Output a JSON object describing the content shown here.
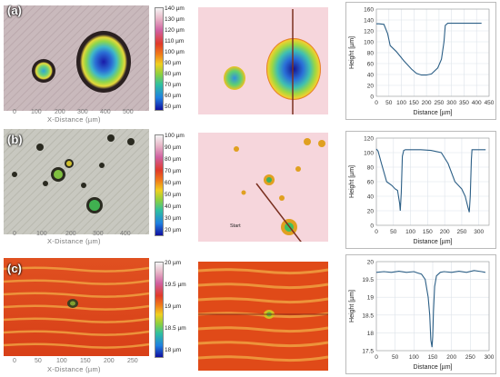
{
  "rows": [
    {
      "label": "(a)",
      "x_ticks": [
        "0",
        "100",
        "200",
        "300",
        "400",
        "500"
      ],
      "x_label": "X-Distance (µm)",
      "colorbar_ticks": [
        "140 µm",
        "130 µm",
        "120 µm",
        "110 µm",
        "100 µm",
        "90 µm",
        "80 µm",
        "70 µm",
        "60 µm",
        "50 µm"
      ]
    },
    {
      "label": "(b)",
      "x_ticks": [
        "0",
        "100",
        "200",
        "300",
        "400"
      ],
      "x_label": "X-Distance (µm)",
      "colorbar_ticks": [
        "100 µm",
        "90 µm",
        "80 µm",
        "70 µm",
        "60 µm",
        "50 µm",
        "40 µm",
        "30 µm",
        "20 µm"
      ],
      "start_label": "Start"
    },
    {
      "label": "(c)",
      "x_ticks": [
        "0",
        "50",
        "100",
        "150",
        "200",
        "250"
      ],
      "x_label": "X-Distance (µm)",
      "colorbar_ticks": [
        "20 µm",
        "19.5 µm",
        "19 µm",
        "18.5 µm",
        "18 µm"
      ]
    }
  ],
  "chart_data": [
    {
      "type": "line",
      "xlabel": "Distance [µm]",
      "ylabel": "Height [µm]",
      "xlim": [
        0,
        450
      ],
      "ylim": [
        0,
        160
      ],
      "xticks": [
        0,
        50,
        100,
        150,
        200,
        250,
        300,
        350,
        400,
        450
      ],
      "yticks": [
        0,
        20,
        40,
        60,
        80,
        100,
        120,
        140,
        160
      ],
      "grid": true,
      "x": [
        0,
        10,
        30,
        45,
        55,
        80,
        110,
        140,
        160,
        180,
        200,
        220,
        245,
        260,
        270,
        275,
        285,
        300,
        350,
        420
      ],
      "y": [
        133,
        133,
        132,
        115,
        93,
        82,
        65,
        50,
        42,
        39,
        39,
        41,
        52,
        68,
        100,
        130,
        134,
        134,
        134,
        134
      ]
    },
    {
      "type": "line",
      "xlabel": "Distance [µm]",
      "ylabel": "Height [µm]",
      "xlim": [
        0,
        330
      ],
      "ylim": [
        0,
        120
      ],
      "xticks": [
        0,
        50,
        100,
        150,
        200,
        250,
        300
      ],
      "yticks": [
        0,
        20,
        40,
        60,
        80,
        100,
        120
      ],
      "grid": true,
      "x": [
        0,
        5,
        15,
        30,
        45,
        55,
        62,
        68,
        70,
        73,
        76,
        80,
        85,
        100,
        130,
        160,
        190,
        210,
        230,
        250,
        260,
        268,
        272,
        275,
        278,
        280,
        290,
        300,
        320
      ],
      "y": [
        105,
        102,
        85,
        60,
        55,
        50,
        48,
        30,
        20,
        45,
        95,
        103,
        104,
        104,
        104,
        103,
        100,
        85,
        60,
        50,
        40,
        25,
        18,
        40,
        90,
        104,
        104,
        104,
        104
      ]
    },
    {
      "type": "line",
      "xlabel": "Distance [µm]",
      "ylabel": "Height [µm]",
      "xlim": [
        0,
        300
      ],
      "ylim": [
        17.5,
        20
      ],
      "xticks": [
        0,
        50,
        100,
        150,
        200,
        250,
        300
      ],
      "yticks": [
        17.5,
        18,
        18.5,
        19,
        19.5,
        20
      ],
      "grid": true,
      "x": [
        0,
        20,
        40,
        60,
        80,
        100,
        110,
        120,
        130,
        138,
        142,
        145,
        148,
        150,
        152,
        155,
        160,
        170,
        180,
        200,
        220,
        240,
        260,
        280,
        290
      ],
      "y": [
        19.7,
        19.72,
        19.7,
        19.73,
        19.7,
        19.72,
        19.68,
        19.65,
        19.5,
        19.0,
        18.5,
        17.8,
        17.6,
        17.9,
        18.6,
        19.3,
        19.6,
        19.7,
        19.72,
        19.7,
        19.73,
        19.7,
        19.75,
        19.72,
        19.7
      ]
    }
  ]
}
